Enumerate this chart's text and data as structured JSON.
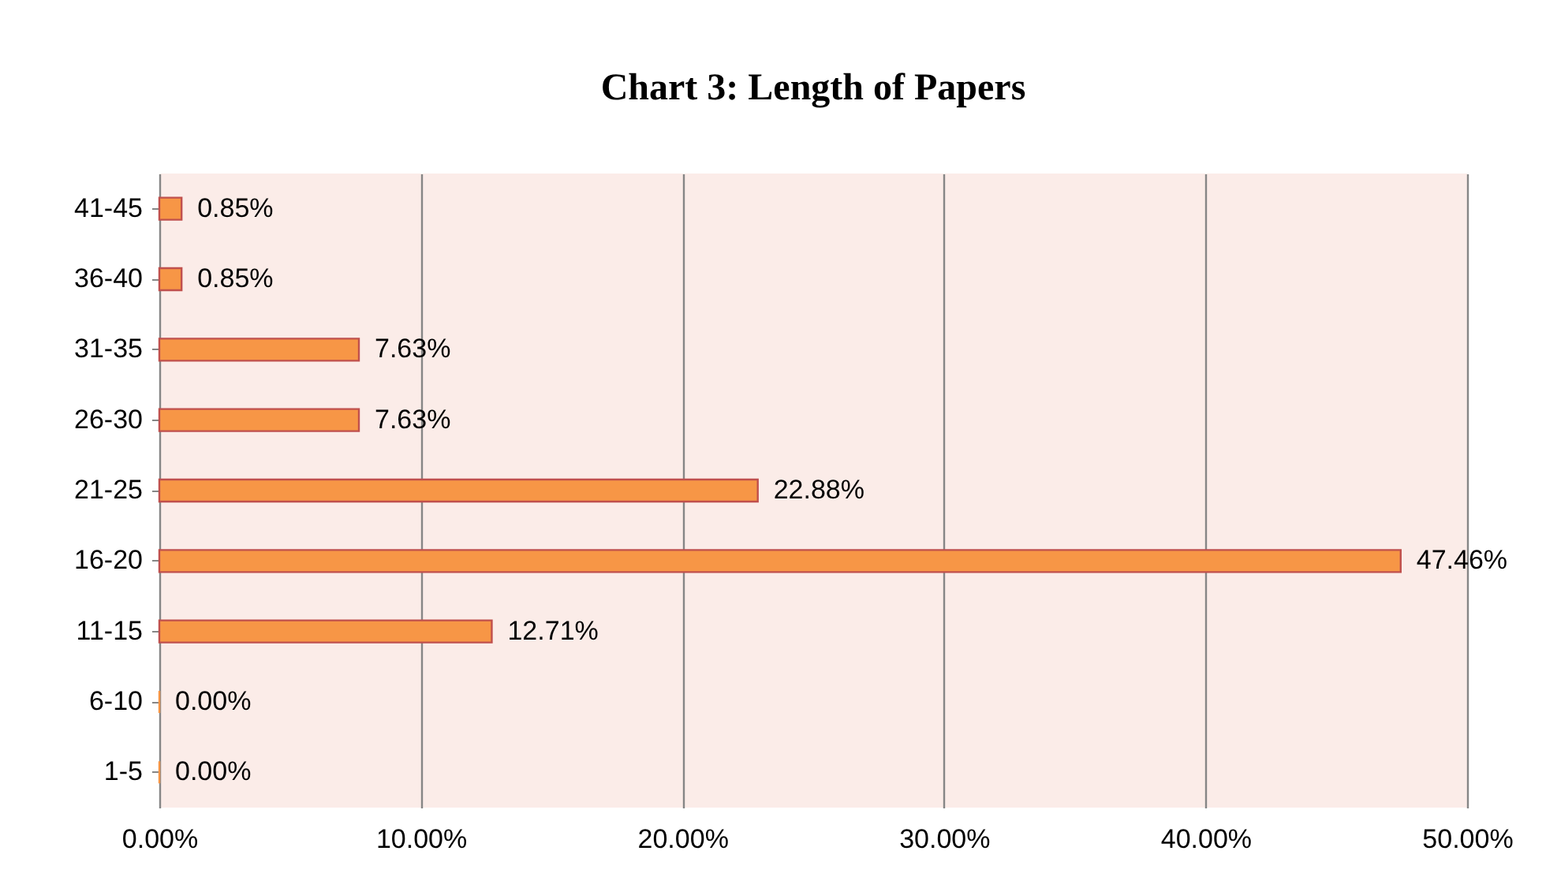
{
  "chart_data": {
    "type": "bar",
    "orientation": "horizontal",
    "title": "Chart 3: Length of Papers",
    "categories": [
      "41-45",
      "36-40",
      "31-35",
      "26-30",
      "21-25",
      "16-20",
      "11-15",
      "6-10",
      "1-5"
    ],
    "values": [
      0.85,
      0.85,
      7.63,
      7.63,
      22.88,
      47.46,
      12.71,
      0.0,
      0.0
    ],
    "value_labels": [
      "0.85%",
      "0.85%",
      "7.63%",
      "7.63%",
      "22.88%",
      "47.46%",
      "12.71%",
      "0.00%",
      "0.00%"
    ],
    "color": "#f79646",
    "xlim": [
      0,
      50
    ],
    "xticks": [
      {
        "value": 0,
        "label": "0.00%"
      },
      {
        "value": 10,
        "label": "10.00%"
      },
      {
        "value": 20,
        "label": "20.00%"
      },
      {
        "value": 30,
        "label": "30.00%"
      },
      {
        "value": 40,
        "label": "40.00%"
      },
      {
        "value": 50,
        "label": "50.00%"
      }
    ],
    "grid": "x"
  }
}
